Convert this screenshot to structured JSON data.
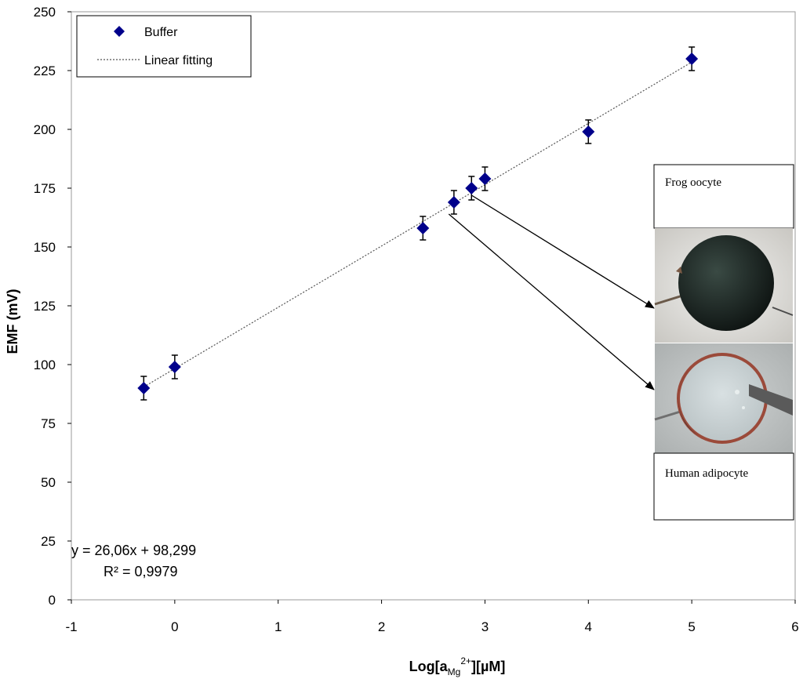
{
  "chart_data": {
    "type": "scatter",
    "xlabel_parts": {
      "prefix": "Log[a",
      "sub": "Mg",
      "sup": "2+",
      "suffix": "][µM]"
    },
    "ylabel": "EMF (mV)",
    "xlim": [
      -1,
      6
    ],
    "ylim": [
      0,
      250
    ],
    "xticks": [
      -1,
      0,
      1,
      2,
      3,
      4,
      5,
      6
    ],
    "yticks": [
      0,
      25,
      50,
      75,
      100,
      125,
      150,
      175,
      200,
      225,
      250
    ],
    "grid": false,
    "legend_position": "top-left",
    "series": [
      {
        "name": "Buffer",
        "marker": "diamond",
        "color": "#00008b",
        "x": [
          -0.3,
          0,
          2.4,
          2.7,
          2.87,
          3,
          4,
          5
        ],
        "y": [
          90,
          99,
          158,
          169,
          175,
          179,
          199,
          230
        ],
        "error": [
          5,
          5,
          5,
          5,
          5,
          5,
          5,
          5
        ]
      }
    ],
    "fit": {
      "name": "Linear fitting",
      "slope": 26.06,
      "intercept": 98.299,
      "x_range": [
        -0.3,
        5
      ],
      "style": "dotted",
      "color": "#555555"
    },
    "annotations": {
      "equation": "y = 26,06x + 98,299",
      "r2": "R² = 0,9979",
      "frog_label": "Frog oocyte",
      "human_label": "Human adipocyte",
      "arrows": [
        {
          "from_x": 2.87,
          "from_y": 172,
          "to": "frog"
        },
        {
          "from_x": 2.65,
          "from_y": 164,
          "to": "human"
        }
      ]
    }
  }
}
